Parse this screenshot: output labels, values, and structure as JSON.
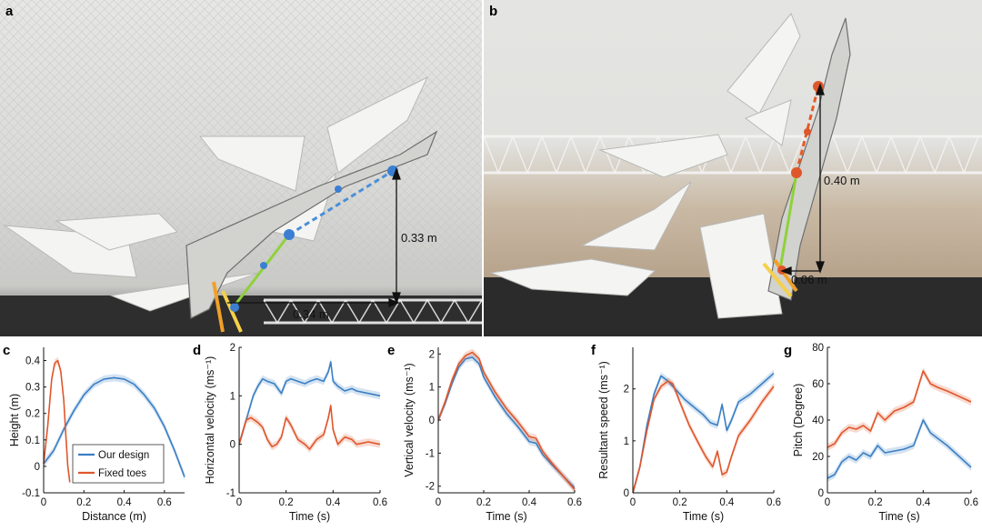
{
  "figure": {
    "panels": {
      "a": "a",
      "b": "b",
      "c": "c",
      "d": "d",
      "e": "e",
      "f": "f",
      "g": "g"
    },
    "photo_a": {
      "vertical_measure": "0.33 m",
      "horizontal_measure": "0.34 m"
    },
    "photo_b": {
      "vertical_measure": "0.40 m",
      "horizontal_measure": "0.06 m"
    },
    "colors": {
      "our_design": "#3a7fc4",
      "fixed_toes": "#e0562b"
    },
    "legend": {
      "our_design": "Our design",
      "fixed_toes": "Fixed toes"
    }
  },
  "chart_data": [
    {
      "id": "c",
      "type": "line",
      "xlabel": "Distance (m)",
      "ylabel": "Height (m)",
      "xlim": [
        0,
        0.7
      ],
      "ylim": [
        -0.1,
        0.45
      ],
      "xticks": [
        0,
        0.2,
        0.4,
        0.6
      ],
      "yticks": [
        -0.1,
        0,
        0.1,
        0.2,
        0.3,
        0.4
      ],
      "xticklabels": [
        "0",
        "0.2",
        "0.4",
        "0.6"
      ],
      "yticklabels": [
        "-0.1",
        "0",
        "0.1",
        "0.2",
        "0.3",
        "0.4"
      ],
      "series": [
        {
          "name": "Our design",
          "color": "#3a7fc4",
          "x": [
            0,
            0.05,
            0.1,
            0.15,
            0.2,
            0.25,
            0.3,
            0.35,
            0.4,
            0.45,
            0.5,
            0.55,
            0.6,
            0.65,
            0.7
          ],
          "y": [
            0.01,
            0.06,
            0.14,
            0.21,
            0.27,
            0.31,
            0.33,
            0.335,
            0.33,
            0.31,
            0.27,
            0.22,
            0.15,
            0.06,
            -0.04
          ]
        },
        {
          "name": "Fixed toes",
          "color": "#e0562b",
          "x": [
            0,
            0.02,
            0.04,
            0.055,
            0.07,
            0.085,
            0.1,
            0.11,
            0.12,
            0.13
          ],
          "y": [
            0.01,
            0.15,
            0.33,
            0.39,
            0.4,
            0.36,
            0.25,
            0.12,
            0.0,
            -0.06
          ]
        }
      ]
    },
    {
      "id": "d",
      "type": "line",
      "xlabel": "Time (s)",
      "ylabel": "Horizontal velocity (ms⁻¹)",
      "xlim": [
        0,
        0.6
      ],
      "ylim": [
        -1,
        2
      ],
      "xticks": [
        0,
        0.2,
        0.4,
        0.6
      ],
      "yticks": [
        -1,
        0,
        1,
        2
      ],
      "xticklabels": [
        "0",
        "0.2",
        "0.4",
        "0.6"
      ],
      "yticklabels": [
        "-1",
        "0",
        "1",
        "2"
      ],
      "series": [
        {
          "name": "Our design",
          "color": "#3a7fc4",
          "x": [
            0,
            0.03,
            0.06,
            0.08,
            0.1,
            0.12,
            0.15,
            0.18,
            0.2,
            0.22,
            0.25,
            0.28,
            0.3,
            0.33,
            0.36,
            0.38,
            0.39,
            0.4,
            0.42,
            0.45,
            0.48,
            0.5,
            0.55,
            0.6
          ],
          "y": [
            0.0,
            0.5,
            1.0,
            1.2,
            1.35,
            1.3,
            1.25,
            1.05,
            1.3,
            1.35,
            1.3,
            1.25,
            1.3,
            1.35,
            1.3,
            1.5,
            1.7,
            1.3,
            1.2,
            1.1,
            1.15,
            1.1,
            1.05,
            1.0
          ]
        },
        {
          "name": "Fixed toes",
          "color": "#e0562b",
          "x": [
            0,
            0.03,
            0.05,
            0.08,
            0.1,
            0.12,
            0.14,
            0.16,
            0.18,
            0.2,
            0.22,
            0.25,
            0.28,
            0.3,
            0.33,
            0.36,
            0.38,
            0.39,
            0.4,
            0.42,
            0.45,
            0.48,
            0.5,
            0.55,
            0.6
          ],
          "y": [
            0.0,
            0.5,
            0.55,
            0.45,
            0.35,
            0.1,
            -0.05,
            0.0,
            0.15,
            0.55,
            0.4,
            0.1,
            0.0,
            -0.1,
            0.1,
            0.2,
            0.55,
            0.8,
            0.3,
            0.0,
            0.15,
            0.1,
            0.0,
            0.05,
            0.0
          ]
        }
      ]
    },
    {
      "id": "e",
      "type": "line",
      "xlabel": "Time (s)",
      "ylabel": "Vertical velocity (ms⁻¹)",
      "xlim": [
        0,
        0.6
      ],
      "ylim": [
        -2.2,
        2.2
      ],
      "xticks": [
        0,
        0.2,
        0.4,
        0.6
      ],
      "yticks": [
        -2,
        -1,
        0,
        1,
        2
      ],
      "xticklabels": [
        "0",
        "0.2",
        "0.4",
        "0.6"
      ],
      "yticklabels": [
        "-2",
        "-1",
        "0",
        "1",
        "2"
      ],
      "series": [
        {
          "name": "Our design",
          "color": "#3a7fc4",
          "x": [
            0,
            0.03,
            0.06,
            0.09,
            0.12,
            0.15,
            0.18,
            0.2,
            0.25,
            0.3,
            0.35,
            0.4,
            0.43,
            0.46,
            0.5,
            0.55,
            0.6
          ],
          "y": [
            0.0,
            0.5,
            1.1,
            1.6,
            1.85,
            1.9,
            1.7,
            1.3,
            0.7,
            0.2,
            -0.2,
            -0.65,
            -0.7,
            -1.05,
            -1.35,
            -1.7,
            -2.05
          ]
        },
        {
          "name": "Fixed toes",
          "color": "#e0562b",
          "x": [
            0,
            0.03,
            0.06,
            0.09,
            0.12,
            0.15,
            0.18,
            0.2,
            0.25,
            0.3,
            0.35,
            0.4,
            0.43,
            0.46,
            0.5,
            0.55,
            0.6
          ],
          "y": [
            0.0,
            0.55,
            1.2,
            1.7,
            1.95,
            2.05,
            1.85,
            1.45,
            0.85,
            0.35,
            -0.05,
            -0.5,
            -0.55,
            -0.95,
            -1.3,
            -1.7,
            -2.1
          ]
        }
      ]
    },
    {
      "id": "f",
      "type": "line",
      "xlabel": "Time (s)",
      "ylabel": "Resultant speed (ms⁻¹)",
      "xlim": [
        0,
        0.6
      ],
      "ylim": [
        0,
        2.8
      ],
      "xticks": [
        0,
        0.2,
        0.4,
        0.6
      ],
      "yticks": [
        0,
        1,
        2
      ],
      "xticklabels": [
        "0",
        "0.2",
        "0.4",
        "0.6"
      ],
      "yticklabels": [
        "0",
        "1",
        "2"
      ],
      "series": [
        {
          "name": "Our design",
          "color": "#3a7fc4",
          "x": [
            0,
            0.03,
            0.06,
            0.09,
            0.12,
            0.15,
            0.18,
            0.22,
            0.26,
            0.3,
            0.33,
            0.36,
            0.38,
            0.4,
            0.42,
            0.45,
            0.5,
            0.55,
            0.6
          ],
          "y": [
            0.0,
            0.5,
            1.3,
            1.9,
            2.25,
            2.15,
            2.0,
            1.8,
            1.65,
            1.5,
            1.35,
            1.3,
            1.7,
            1.2,
            1.4,
            1.75,
            1.9,
            2.1,
            2.3
          ]
        },
        {
          "name": "Fixed toes",
          "color": "#e0562b",
          "x": [
            0,
            0.03,
            0.06,
            0.09,
            0.12,
            0.15,
            0.17,
            0.2,
            0.24,
            0.28,
            0.31,
            0.34,
            0.36,
            0.38,
            0.4,
            0.42,
            0.45,
            0.5,
            0.55,
            0.6
          ],
          "y": [
            0.0,
            0.5,
            1.2,
            1.8,
            2.05,
            2.15,
            2.1,
            1.75,
            1.3,
            0.95,
            0.7,
            0.5,
            0.8,
            0.35,
            0.4,
            0.7,
            1.1,
            1.4,
            1.75,
            2.05
          ]
        }
      ]
    },
    {
      "id": "g",
      "type": "line",
      "xlabel": "Time (s)",
      "ylabel": "Pitch (Degree)",
      "xlim": [
        0,
        0.6
      ],
      "ylim": [
        0,
        80
      ],
      "xticks": [
        0,
        0.2,
        0.4,
        0.6
      ],
      "yticks": [
        0,
        20,
        40,
        60,
        80
      ],
      "xticklabels": [
        "0",
        "0.2",
        "0.4",
        "0.6"
      ],
      "yticklabels": [
        "0",
        "20",
        "40",
        "60",
        "80"
      ],
      "series": [
        {
          "name": "Fixed toes",
          "color": "#e0562b",
          "x": [
            0,
            0.03,
            0.06,
            0.09,
            0.12,
            0.15,
            0.18,
            0.21,
            0.24,
            0.28,
            0.32,
            0.36,
            0.4,
            0.43,
            0.46,
            0.5,
            0.55,
            0.6
          ],
          "y": [
            25,
            27,
            33,
            36,
            35,
            37,
            34,
            44,
            40,
            45,
            47,
            50,
            67,
            60,
            58,
            56,
            53,
            50
          ]
        },
        {
          "name": "Our design",
          "color": "#3a7fc4",
          "x": [
            0,
            0.03,
            0.06,
            0.09,
            0.12,
            0.15,
            0.18,
            0.21,
            0.24,
            0.28,
            0.32,
            0.36,
            0.4,
            0.43,
            0.46,
            0.5,
            0.55,
            0.6
          ],
          "y": [
            8,
            10,
            17,
            20,
            18,
            22,
            20,
            26,
            22,
            23,
            24,
            26,
            40,
            33,
            30,
            26,
            20,
            14
          ]
        }
      ]
    }
  ]
}
